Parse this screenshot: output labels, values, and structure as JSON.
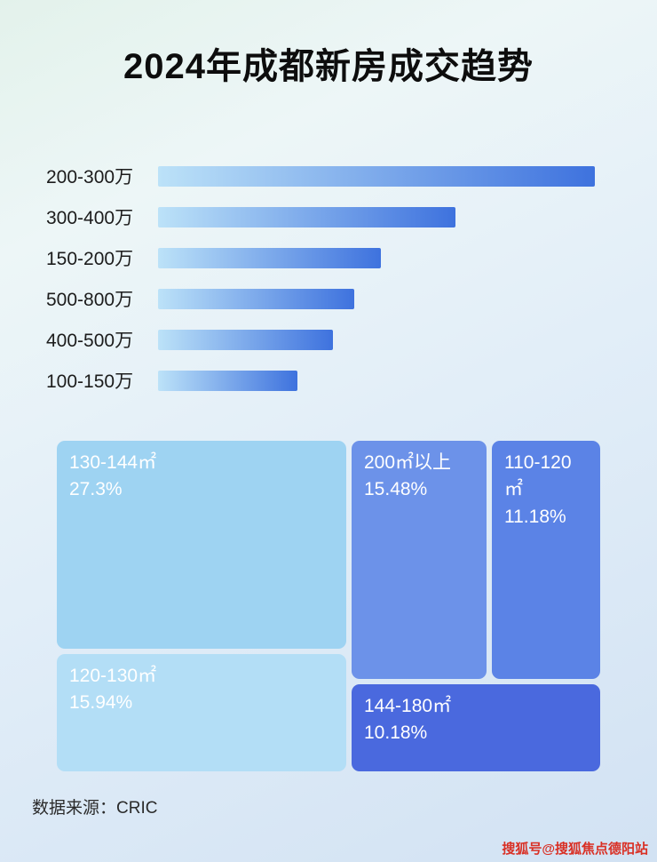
{
  "page": {
    "title": "2024年成都新房成交趋势"
  },
  "chart_data": [
    {
      "type": "bar",
      "orientation": "horizontal",
      "title": "2024年成都新房成交趋势",
      "categories": [
        "200-300万",
        "300-400万",
        "150-200万",
        "500-800万",
        "400-500万",
        "100-150万"
      ],
      "values": [
        100,
        68,
        51,
        45,
        40,
        32
      ],
      "values_note": "relative bar lengths as % of longest bar; no numeric axis shown in image",
      "xlabel": "",
      "ylabel": "",
      "axis_visible": false,
      "legend": false,
      "grid": false,
      "bar_gradient": [
        "#bce2f8",
        "#3e72de"
      ]
    },
    {
      "type": "treemap",
      "title": "",
      "items": [
        {
          "label": "130-144㎡",
          "value": "27.3%",
          "color": "#9ed3f2"
        },
        {
          "label": "120-130㎡",
          "value": "15.94%",
          "color": "#b3def6"
        },
        {
          "label": "200㎡以上",
          "value": "15.48%",
          "color": "#6c92e9"
        },
        {
          "label": "110-120㎡",
          "value": "11.18%",
          "color": "#5b83e6"
        },
        {
          "label": "144-180㎡",
          "value": "10.18%",
          "color": "#4a69de"
        }
      ]
    }
  ],
  "footer": {
    "source_label": "数据来源：CRIC"
  },
  "watermark": {
    "text": "搜狐号@搜狐焦点德阳站",
    "color": "#d93025"
  }
}
